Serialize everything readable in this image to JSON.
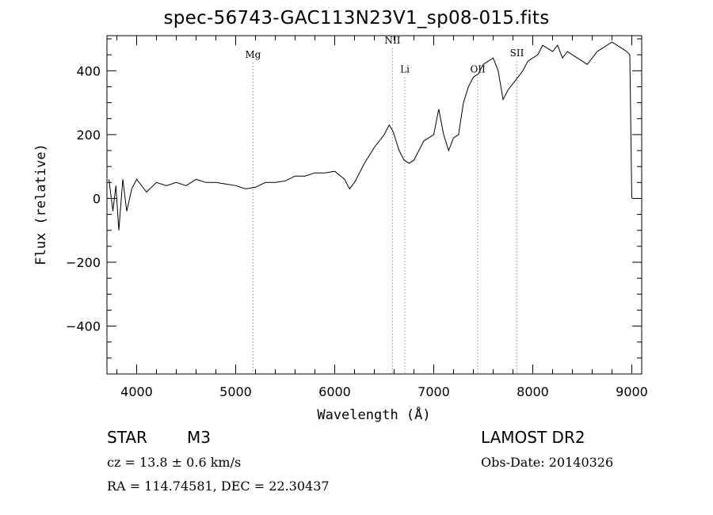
{
  "chart_data": {
    "type": "line",
    "title": "spec-56743-GAC113N23V1_sp08-015.fits",
    "xlabel": "Wavelength (Å)",
    "ylabel": "Flux (relative)",
    "xlim": [
      3700,
      9100
    ],
    "ylim": [
      -550,
      510
    ],
    "x_ticks": [
      4000,
      5000,
      6000,
      7000,
      8000,
      9000
    ],
    "y_ticks": [
      -400,
      -200,
      0,
      200,
      400
    ],
    "grid": false,
    "line_color": "#000000",
    "marker_color": "#c0392b",
    "line_markers": [
      {
        "label": "Mg",
        "wavelength": 5175,
        "label_flux": 440
      },
      {
        "label": "NII",
        "wavelength": 6584,
        "label_flux": 485
      },
      {
        "label": "Li",
        "wavelength": 6708,
        "label_flux": 395
      },
      {
        "label": "OII",
        "wavelength": 7445,
        "label_flux": 395
      },
      {
        "label": "SII",
        "wavelength": 7840,
        "label_flux": 445
      }
    ],
    "series": [
      {
        "x": [
          3720,
          3760,
          3790,
          3820,
          3860,
          3900,
          3950,
          4000,
          4100,
          4200,
          4300,
          4400,
          4500,
          4600,
          4700,
          4800,
          4900,
          5000,
          5100,
          5200,
          5300,
          5400,
          5500,
          5600,
          5700,
          5800,
          5900,
          6000,
          6100,
          6150,
          6200,
          6300,
          6400,
          6500,
          6550,
          6580,
          6600,
          6650,
          6700,
          6750,
          6800,
          6850,
          6900,
          7000,
          7050,
          7100,
          7150,
          7200,
          7250,
          7300,
          7350,
          7400,
          7450,
          7500,
          7550,
          7600,
          7650,
          7700,
          7750,
          7800,
          7850,
          7900,
          7950,
          8000,
          8050,
          8100,
          8150,
          8200,
          8250,
          8300,
          8350,
          8400,
          8450,
          8500,
          8550,
          8600,
          8650,
          8700,
          8750,
          8800,
          8850,
          8900,
          8950,
          8980,
          9000
        ],
        "y": [
          60,
          -40,
          40,
          -100,
          60,
          -40,
          30,
          60,
          20,
          50,
          40,
          50,
          40,
          60,
          50,
          50,
          45,
          40,
          30,
          35,
          50,
          50,
          55,
          70,
          70,
          80,
          80,
          85,
          60,
          30,
          50,
          110,
          160,
          200,
          230,
          215,
          200,
          150,
          120,
          110,
          120,
          150,
          180,
          200,
          280,
          200,
          150,
          190,
          200,
          300,
          350,
          380,
          390,
          420,
          430,
          440,
          400,
          310,
          340,
          360,
          380,
          400,
          430,
          440,
          450,
          480,
          470,
          460,
          480,
          440,
          460,
          450,
          440,
          430,
          420,
          440,
          460,
          470,
          480,
          490,
          480,
          470,
          460,
          450,
          0
        ]
      }
    ]
  },
  "info": {
    "object_type": "STAR",
    "object_class": "M3",
    "survey": "LAMOST DR2",
    "cz": "cz = 13.8 ± 0.6 km/s",
    "obs_date": "Obs-Date: 20140326",
    "coords": "RA = 114.74581, DEC =  22.30437"
  }
}
